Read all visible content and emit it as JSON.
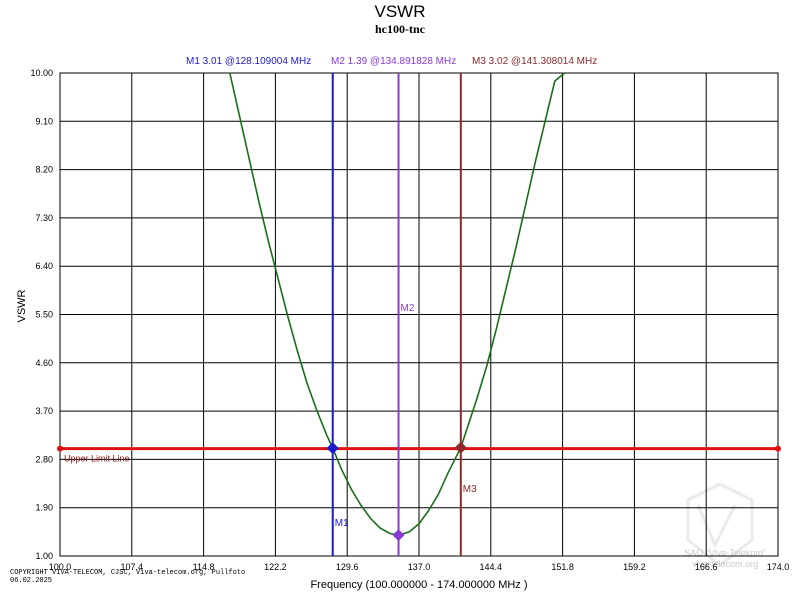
{
  "chart_data": {
    "type": "line",
    "title": "VSWR",
    "subtitle": "hc100-tnc",
    "xlabel": "Frequency (100.000000 - 174.000000 MHz )",
    "ylabel": "VSWR",
    "xlim": [
      100.0,
      174.0
    ],
    "ylim": [
      1.0,
      10.0
    ],
    "x_ticks": [
      "100.0",
      "107.4",
      "114.8",
      "122.2",
      "129.6",
      "137.0",
      "144.4",
      "151.8",
      "159.2",
      "166.6",
      "174.0"
    ],
    "y_ticks": [
      "1.00",
      "1.90",
      "2.80",
      "3.70",
      "4.60",
      "5.50",
      "6.40",
      "7.30",
      "8.20",
      "9.10",
      "10.00"
    ],
    "grid": true,
    "series": [
      {
        "color": "#1a6e1a",
        "x": [
          117.5,
          118.5,
          119.5,
          120.5,
          121.5,
          122.5,
          123.5,
          124.5,
          125.5,
          126.5,
          127.5,
          128.109,
          129.0,
          130.0,
          131.0,
          132.0,
          133.0,
          134.0,
          134.89,
          136.0,
          137.0,
          138.0,
          139.0,
          140.0,
          141.308,
          142.0,
          143.0,
          144.0,
          145.0,
          146.0,
          147.0,
          148.0,
          149.0,
          150.0,
          151.0,
          152.0
        ],
        "y": [
          10.0,
          9.2,
          8.4,
          7.6,
          6.85,
          6.15,
          5.45,
          4.8,
          4.2,
          3.7,
          3.25,
          3.01,
          2.62,
          2.25,
          1.95,
          1.7,
          1.52,
          1.42,
          1.39,
          1.45,
          1.6,
          1.85,
          2.15,
          2.55,
          3.02,
          3.4,
          3.95,
          4.55,
          5.25,
          6.0,
          6.75,
          7.55,
          8.35,
          9.1,
          9.85,
          10.0
        ]
      }
    ],
    "limit_line": {
      "label": "Upper Limit Line",
      "value": 3.0,
      "color": "#dd1111"
    },
    "markers": [
      {
        "name": "M1",
        "x": 128.109004,
        "y": 3.01,
        "color": "#1a1acc",
        "readout": "M1   3.01 @128.109004 MHz"
      },
      {
        "name": "M2",
        "x": 134.891828,
        "y": 1.39,
        "color": "#8a3ad8",
        "readout": "M2   1.39 @134.891828 MHz"
      },
      {
        "name": "M3",
        "x": 141.308014,
        "y": 3.02,
        "color": "#8b2a2a",
        "readout": "M3   3.02 @141.308014 MHz"
      }
    ]
  },
  "footer": {
    "copyright_line1": "COPYRIGHT VIVA-TELECOM, CJSC, Viva-telecom.org, Pullfoto",
    "copyright_line2": "06.02.2025",
    "watermark_line1": "SAO \"Viva-Telekom\"",
    "watermark_line2": "viva-telecom.org"
  }
}
